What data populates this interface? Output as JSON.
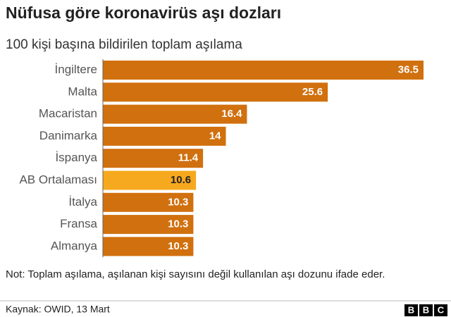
{
  "chart_data": {
    "type": "bar",
    "orientation": "horizontal",
    "title": "Nüfusa göre koronavirüs aşı dozları",
    "subtitle": "100 kişi başına bildirilen toplam aşılama",
    "categories": [
      "İngiltere",
      "Malta",
      "Macaristan",
      "Danimarka",
      "İspanya",
      "AB Ortalaması",
      "İtalya",
      "Fransa",
      "Almanya"
    ],
    "values": [
      36.5,
      25.6,
      16.4,
      14,
      11.4,
      10.6,
      10.3,
      10.3,
      10.3
    ],
    "colors": [
      "#d1700e",
      "#d1700e",
      "#d1700e",
      "#d1700e",
      "#d1700e",
      "#f6a81f",
      "#d1700e",
      "#d1700e",
      "#d1700e"
    ],
    "label_colors": [
      "#ffffff",
      "#ffffff",
      "#ffffff",
      "#ffffff",
      "#ffffff",
      "#222222",
      "#ffffff",
      "#ffffff",
      "#ffffff"
    ],
    "note": "Not: Toplam aşılama, aşılanan kişi sayısını değil kullanılan aşı dozunu ifade eder.",
    "source": "Kaynak: OWID, 13 Mart",
    "logo": [
      "B",
      "B",
      "C"
    ]
  }
}
